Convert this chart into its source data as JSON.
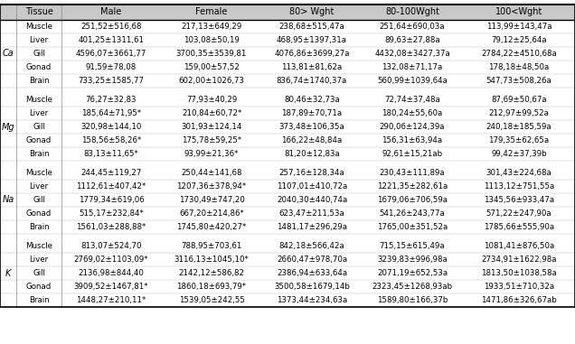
{
  "headers": [
    "Tissue",
    "Male",
    "Female",
    "80> Wght",
    "80-100Wght",
    "100<Wght"
  ],
  "elements": [
    "Ca",
    "Mg",
    "Na",
    "K"
  ],
  "tissues": [
    "Muscle",
    "Liver",
    "Gill",
    "Gonad",
    "Brain"
  ],
  "data": {
    "Ca": {
      "Muscle": [
        "251,52±516,68",
        "217,13±649,29",
        "238,68±515,47a",
        "251,64±690,03a",
        "113,99±143,47a"
      ],
      "Liver": [
        "401,25±1311,61",
        "103,08±50,19",
        "468,95±1397,31a",
        "89,63±27,88a",
        "79,12±25,64a"
      ],
      "Gill": [
        "4596,07±3661,77",
        "3700,35±3539,81",
        "4076,86±3699,27a",
        "4432,08±3427,37a",
        "2784,22±4510,68a"
      ],
      "Gonad": [
        "91,59±78,08",
        "159,00±57,52",
        "113,81±81,62a",
        "132,08±71,17a",
        "178,18±48,50a"
      ],
      "Brain": [
        "733,25±1585,77",
        "602,00±1026,73",
        "836,74±1740,37a",
        "560,99±1039,64a",
        "547,73±508,26a"
      ]
    },
    "Mg": {
      "Muscle": [
        "76,27±32,83",
        "77,93±40,29",
        "80,46±32,73a",
        "72,74±37,48a",
        "87,69±50,67a"
      ],
      "Liver": [
        "185,64±71,95*",
        "210,84±60,72*",
        "187,89±70,71a",
        "180,24±55,60a",
        "212,97±99,52a"
      ],
      "Gill": [
        "320,98±144,10",
        "301,93±124,14",
        "373,48±106,35a",
        "290,06±124,39a",
        "240,18±185,59a"
      ],
      "Gonad": [
        "158,56±58,26*",
        "175,78±59,25*",
        "166,22±48,84a",
        "156,31±63,94a",
        "179,35±62,65a"
      ],
      "Brain": [
        "83,13±11,65*",
        "93,99±21,36*",
        "81,20±12,83a",
        "92,61±15,21ab",
        "99,42±37,39b"
      ]
    },
    "Na": {
      "Muscle": [
        "244,45±119,27",
        "250,44±141,68",
        "257,16±128,34a",
        "230,43±111,89a",
        "301,43±224,68a"
      ],
      "Liver": [
        "1112,61±407,42*",
        "1207,36±378,94*",
        "1107,01±410,72a",
        "1221,35±282,61a",
        "1113,12±751,55a"
      ],
      "Gill": [
        "1779,34±619,06",
        "1730,49±747,20",
        "2040,30±440,74a",
        "1679,06±706,59a",
        "1345,56±933,47a"
      ],
      "Gonad": [
        "515,17±232,84*",
        "667,20±214,86*",
        "623,47±211,53a",
        "541,26±243,77a",
        "571,22±247,90a"
      ],
      "Brain": [
        "1561,03±288,88*",
        "1745,80±420,27*",
        "1481,17±296,29a",
        "1765,00±351,52a",
        "1785,66±555,90a"
      ]
    },
    "K": {
      "Muscle": [
        "813,07±524,70",
        "788,95±703,61",
        "842,18±566,42a",
        "715,15±615,49a",
        "1081,41±876,50a"
      ],
      "Liver": [
        "2769,02±1103,09*",
        "3116,13±1045,10*",
        "2660,47±978,70a",
        "3239,83±996,98a",
        "2734,91±1622,98a"
      ],
      "Gill": [
        "2136,98±844,40",
        "2142,12±586,82",
        "2386,94±633,64a",
        "2071,19±652,53a",
        "1813,50±1038,58a"
      ],
      "Gonad": [
        "3909,52±1467,81*",
        "1860,18±693,79*",
        "3500,58±1679,14b",
        "2323,45±1268,93ab",
        "1933,51±710,32a"
      ],
      "Brain": [
        "1448,27±210,11*",
        "1539,05±242,55",
        "1373,44±234,63a",
        "1589,80±166,37b",
        "1471,86±326,67ab"
      ]
    }
  },
  "header_bg": "#c8c8c8",
  "font_size": 6.2,
  "header_font_size": 7.0,
  "elem_font_size": 7.0
}
